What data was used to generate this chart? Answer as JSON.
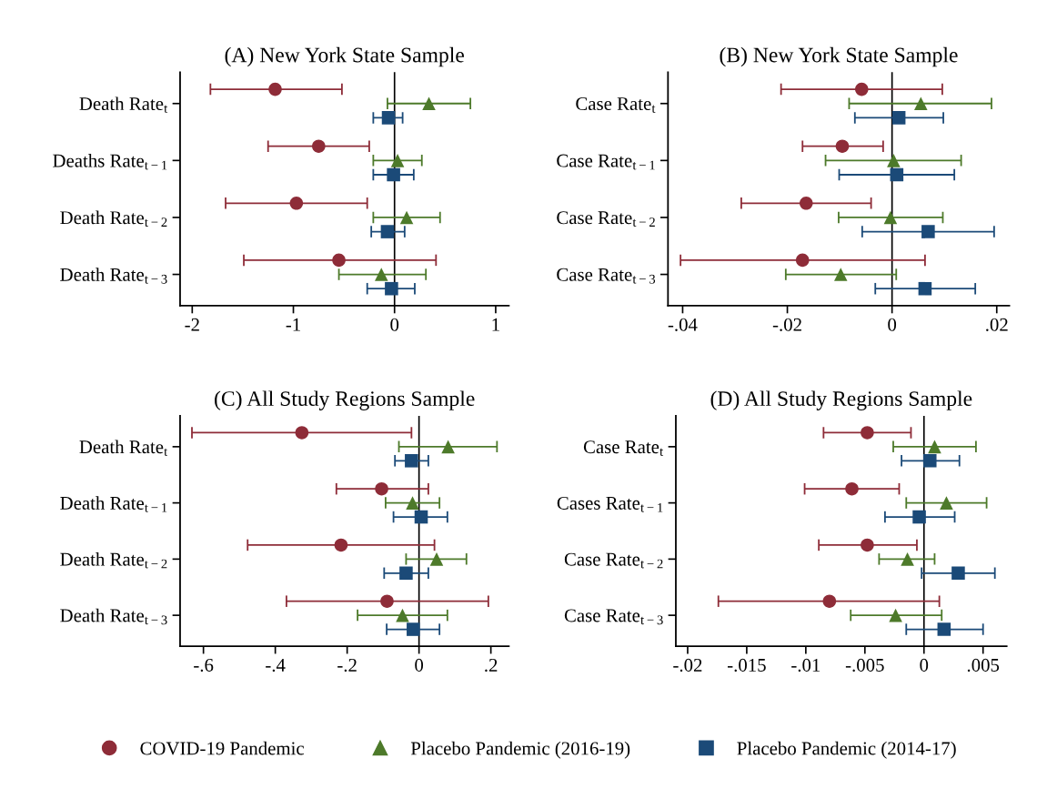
{
  "chart_data": [
    {
      "type": "scatter",
      "orientation": "horizontal",
      "title": "(A) New York State Sample",
      "legend": "bottom",
      "categories": [
        "Death Rate$_{t}$",
        "Deaths Rate$_{t−1}$",
        "Death Rate$_{t−2}$",
        "Death Rate$_{t−3}$"
      ],
      "xlim": [
        -2.12,
        1.13
      ],
      "xticks": [
        -2,
        -1,
        0,
        1
      ],
      "ref_lines": [
        {
          "axis": "x",
          "value": 0,
          "color": "#000000"
        }
      ],
      "series": [
        {
          "name": "COVID-19 Pandemic",
          "color": "#8e2c38",
          "marker": "circle",
          "values": [
            -1.18,
            -0.75,
            -0.97,
            -0.55
          ],
          "errors": [
            [
              -1.82,
              -0.52
            ],
            [
              -1.25,
              -0.25
            ],
            [
              -1.67,
              -0.27
            ],
            [
              -1.49,
              0.41
            ]
          ]
        },
        {
          "name": "Placebo Pandemic (2016-19)",
          "color": "#4d7a2a",
          "marker": "triangle",
          "values": [
            0.34,
            0.03,
            0.12,
            -0.13
          ],
          "errors": [
            [
              -0.07,
              0.75
            ],
            [
              -0.21,
              0.27
            ],
            [
              -0.21,
              0.45
            ],
            [
              -0.55,
              0.31
            ]
          ]
        },
        {
          "name": "Placebo Pandemic (2014-17)",
          "color": "#1b4a78",
          "marker": "square",
          "values": [
            -0.06,
            -0.01,
            -0.07,
            -0.03
          ],
          "errors": [
            [
              -0.21,
              0.08
            ],
            [
              -0.21,
              0.19
            ],
            [
              -0.23,
              0.1
            ],
            [
              -0.27,
              0.2
            ]
          ]
        }
      ]
    },
    {
      "type": "scatter",
      "orientation": "horizontal",
      "title": "(B) New York State Sample",
      "categories": [
        "Case Rate$_{t}$",
        "Case Rate$_{t−1}$",
        "Case Rate$_{t−2}$",
        "Case Rate$_{t−3}$"
      ],
      "xlim": [
        -0.0428,
        0.0224
      ],
      "xticks": [
        {
          "value": -0.04,
          "label": "-.04"
        },
        {
          "value": -0.02,
          "label": "-.02"
        },
        0,
        {
          "value": 0.02,
          "label": ".02"
        }
      ],
      "ref_lines": [
        {
          "axis": "x",
          "value": 0,
          "color": "#000000"
        }
      ],
      "series": [
        {
          "color": "#8e2c38",
          "marker": "circle",
          "values": [
            -0.0058,
            -0.0095,
            -0.0164,
            -0.0171
          ],
          "errors": [
            [
              -0.0212,
              0.0096
            ],
            [
              -0.0171,
              -0.0017
            ],
            [
              -0.0288,
              -0.004
            ],
            [
              -0.0404,
              0.0063
            ]
          ]
        },
        {
          "color": "#4d7a2a",
          "marker": "triangle",
          "values": [
            0.0055,
            0.0003,
            -0.0003,
            -0.0098
          ],
          "errors": [
            [
              -0.0082,
              0.019
            ],
            [
              -0.0127,
              0.0132
            ],
            [
              -0.0102,
              0.0097
            ],
            [
              -0.0203,
              0.0008
            ]
          ]
        },
        {
          "color": "#1b4a78",
          "marker": "square",
          "values": [
            0.0013,
            0.0009,
            0.0069,
            0.0063
          ],
          "errors": [
            [
              -0.0071,
              0.0098
            ],
            [
              -0.0101,
              0.0119
            ],
            [
              -0.0057,
              0.0195
            ],
            [
              -0.0032,
              0.0159
            ]
          ]
        }
      ]
    },
    {
      "type": "scatter",
      "orientation": "horizontal",
      "title": "(C) All Study Regions Sample",
      "categories": [
        "Death Rate$_{t}$",
        "Death Rate$_{t−1}$",
        "Death Rate$_{t−2}$",
        "Death Rate$_{t−3}$"
      ],
      "xlim": [
        -0.665,
        0.25
      ],
      "xticks": [
        {
          "value": -0.6,
          "label": "-.6"
        },
        {
          "value": -0.4,
          "label": "-.4"
        },
        {
          "value": -0.2,
          "label": "-.2"
        },
        0,
        {
          "value": 0.2,
          "label": ".2"
        }
      ],
      "ref_lines": [
        {
          "axis": "x",
          "value": 0,
          "color": "#000000"
        }
      ],
      "series": [
        {
          "color": "#8e2c38",
          "marker": "circle",
          "values": [
            -0.326,
            -0.104,
            -0.217,
            -0.089
          ],
          "errors": [
            [
              -0.632,
              -0.021
            ],
            [
              -0.23,
              0.026
            ],
            [
              -0.477,
              0.043
            ],
            [
              -0.369,
              0.193
            ]
          ]
        },
        {
          "color": "#4d7a2a",
          "marker": "triangle",
          "values": [
            0.081,
            -0.018,
            0.049,
            -0.046
          ],
          "errors": [
            [
              -0.056,
              0.217
            ],
            [
              -0.093,
              0.057
            ],
            [
              -0.036,
              0.132
            ],
            [
              -0.171,
              0.079
            ]
          ]
        },
        {
          "color": "#1b4a78",
          "marker": "square",
          "values": [
            -0.021,
            0.006,
            -0.036,
            -0.016
          ],
          "errors": [
            [
              -0.067,
              0.026
            ],
            [
              -0.071,
              0.079
            ],
            [
              -0.097,
              0.026
            ],
            [
              -0.09,
              0.057
            ]
          ]
        }
      ]
    },
    {
      "type": "scatter",
      "orientation": "horizontal",
      "title": "(D) All Study Regions Sample",
      "categories": [
        "Case Rate$_{t}$",
        "Cases Rate$_{t−1}$",
        "Case Rate$_{t−2}$",
        "Case Rate$_{t−3}$"
      ],
      "xlim": [
        -0.021,
        0.007
      ],
      "xticks": [
        {
          "value": -0.02,
          "label": "-.02"
        },
        {
          "value": -0.015,
          "label": "-.015"
        },
        {
          "value": -0.01,
          "label": "-.01"
        },
        {
          "value": -0.005,
          "label": "-.005"
        },
        0,
        {
          "value": 0.005,
          "label": ".005"
        }
      ],
      "ref_lines": [
        {
          "axis": "x",
          "value": 0,
          "color": "#000000"
        }
      ],
      "series": [
        {
          "color": "#8e2c38",
          "marker": "circle",
          "values": [
            -0.0048,
            -0.0061,
            -0.0048,
            -0.008
          ],
          "errors": [
            [
              -0.0085,
              -0.0011
            ],
            [
              -0.0101,
              -0.0021
            ],
            [
              -0.0089,
              -0.0006
            ],
            [
              -0.0174,
              0.0013
            ]
          ]
        },
        {
          "color": "#4d7a2a",
          "marker": "triangle",
          "values": [
            0.0009,
            0.0019,
            -0.0014,
            -0.0024
          ],
          "errors": [
            [
              -0.0026,
              0.0044
            ],
            [
              -0.0015,
              0.0053
            ],
            [
              -0.0038,
              0.0009
            ],
            [
              -0.0062,
              0.0015
            ]
          ]
        },
        {
          "color": "#1b4a78",
          "marker": "square",
          "values": [
            0.0005,
            -0.0004,
            0.0029,
            0.0017
          ],
          "errors": [
            [
              -0.0019,
              0.003
            ],
            [
              -0.0033,
              0.0026
            ],
            [
              -0.0002,
              0.006
            ],
            [
              -0.0015,
              0.005
            ]
          ]
        }
      ]
    }
  ]
}
